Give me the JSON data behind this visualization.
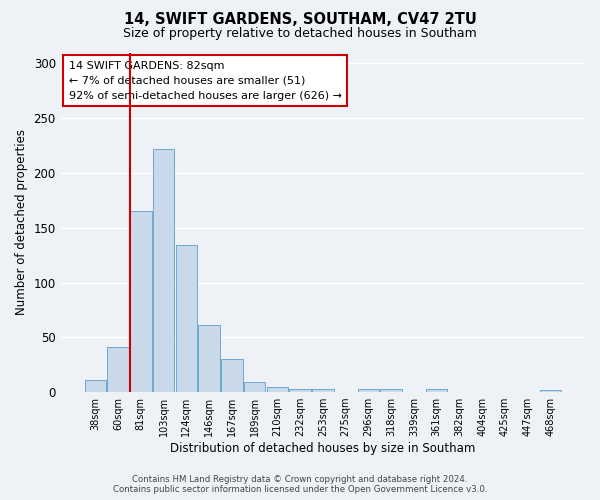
{
  "title_line1": "14, SWIFT GARDENS, SOUTHAM, CV47 2TU",
  "title_line2": "Size of property relative to detached houses in Southam",
  "xlabel": "Distribution of detached houses by size in Southam",
  "ylabel": "Number of detached properties",
  "bar_color": "#c9d9ea",
  "bar_edge_color": "#6aaad4",
  "vline_color": "#cc0000",
  "categories": [
    "38sqm",
    "60sqm",
    "81sqm",
    "103sqm",
    "124sqm",
    "146sqm",
    "167sqm",
    "189sqm",
    "210sqm",
    "232sqm",
    "253sqm",
    "275sqm",
    "296sqm",
    "318sqm",
    "339sqm",
    "361sqm",
    "382sqm",
    "404sqm",
    "425sqm",
    "447sqm",
    "468sqm"
  ],
  "values": [
    11,
    41,
    165,
    222,
    134,
    61,
    30,
    9,
    5,
    3,
    3,
    0,
    3,
    3,
    0,
    3,
    0,
    0,
    0,
    0,
    2
  ],
  "ylim": [
    0,
    310
  ],
  "yticks": [
    0,
    50,
    100,
    150,
    200,
    250,
    300
  ],
  "annotation_line1": "14 SWIFT GARDENS: 82sqm",
  "annotation_line2": "← 7% of detached houses are smaller (51)",
  "annotation_line3": "92% of semi-detached houses are larger (626) →",
  "footer_text": "Contains HM Land Registry data © Crown copyright and database right 2024.\nContains public sector information licensed under the Open Government Licence v3.0.",
  "background_color": "#eef2f7",
  "grid_color": "#ffffff",
  "vline_bar_index": 2
}
